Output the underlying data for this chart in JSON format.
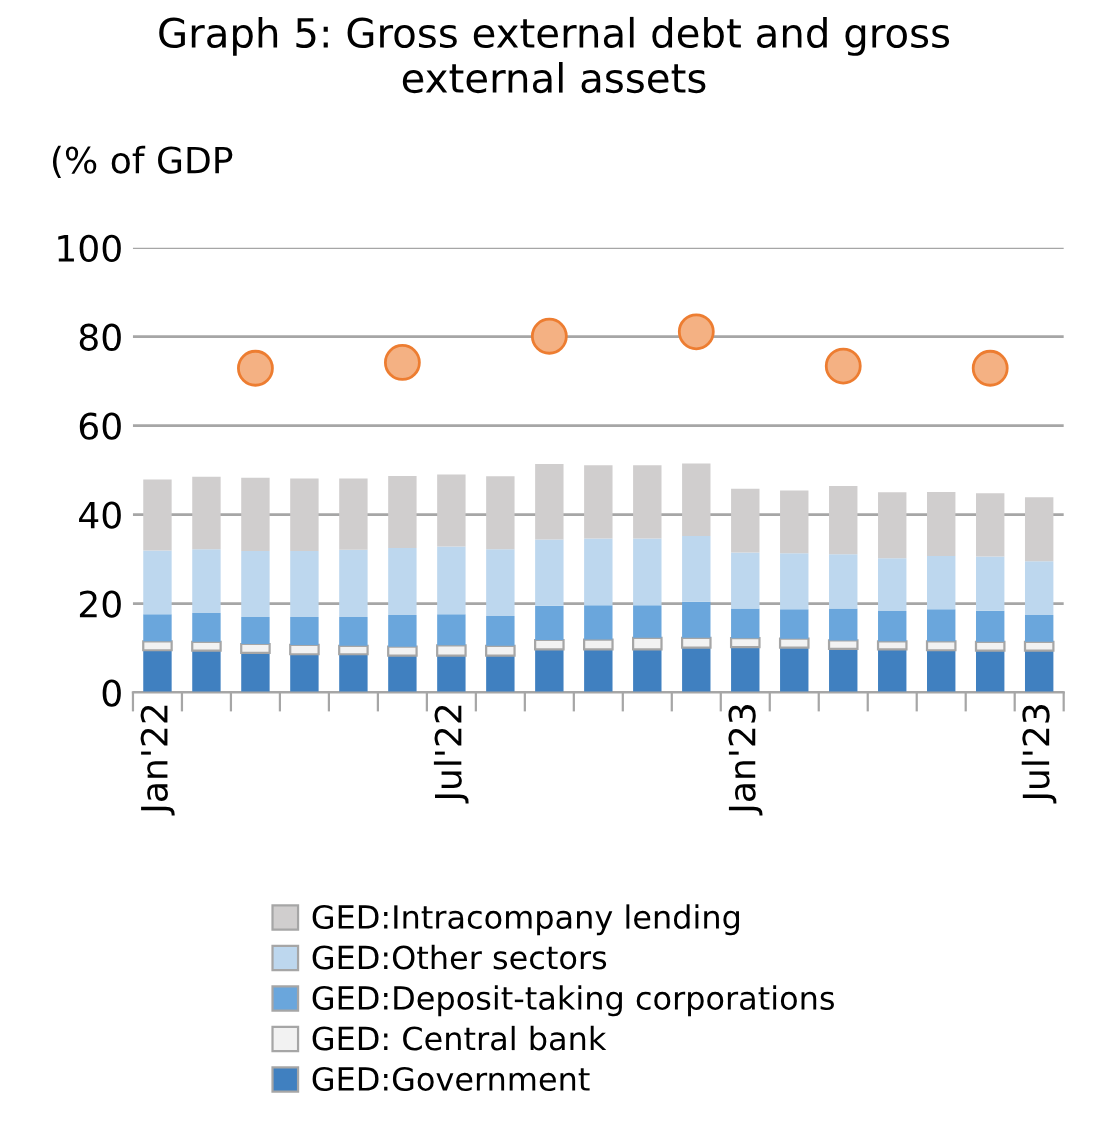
{
  "chart_data": {
    "type": "bar",
    "stacked": true,
    "title": "Graph 5: Gross external debt and gross\nexternal assets",
    "ylabel": "(% of GDP",
    "categories": [
      "Jan'22",
      null,
      null,
      null,
      null,
      null,
      "Jul'22",
      null,
      null,
      null,
      null,
      null,
      "Jan'23",
      null,
      null,
      null,
      null,
      null,
      "Jul'23"
    ],
    "series": [
      {
        "name": "GED:Government",
        "color": "#4080c0",
        "values": [
          9.5,
          9.4,
          8.9,
          8.6,
          8.6,
          8.3,
          8.3,
          8.3,
          9.7,
          9.7,
          9.7,
          10.1,
          10.2,
          10.1,
          9.8,
          9.7,
          9.5,
          9.4,
          9.4
        ]
      },
      {
        "name": "GED: Central bank",
        "color": "#f2f2f2",
        "values": [
          2.0,
          2.0,
          2.0,
          2.1,
          1.9,
          2.0,
          2.3,
          2.2,
          2.1,
          2.2,
          2.6,
          2.2,
          2.0,
          2.0,
          1.9,
          1.8,
          2.0,
          2.0,
          2.0
        ]
      },
      {
        "name": "GED:Deposit-taking corporations",
        "color": "#6aa6dc",
        "values": [
          6.1,
          6.5,
          6.1,
          6.3,
          6.5,
          7.1,
          7.0,
          6.7,
          7.7,
          7.7,
          7.3,
          8.1,
          6.7,
          6.6,
          7.2,
          6.8,
          7.2,
          7.0,
          6.0
        ]
      },
      {
        "name": "GED:Other sectors",
        "color": "#bdd7ee",
        "values": [
          14.3,
          14.3,
          14.8,
          14.8,
          15.1,
          15.1,
          15.2,
          15.0,
          14.9,
          15.0,
          15.0,
          14.8,
          12.6,
          12.6,
          12.2,
          11.9,
          12.0,
          12.2,
          12.1
        ]
      },
      {
        "name": "GED:Intracompany lending",
        "color": "#d0cece",
        "values": [
          16.0,
          16.3,
          16.5,
          16.3,
          16.0,
          16.2,
          16.2,
          16.4,
          17.0,
          16.5,
          16.5,
          16.3,
          14.3,
          14.1,
          15.3,
          14.8,
          14.4,
          14.2,
          14.4
        ]
      },
      {
        "type": "scatter",
        "color": "#f4b183",
        "marker": "circle",
        "values": [
          null,
          null,
          72.9,
          null,
          null,
          74.2,
          null,
          null,
          80.1,
          null,
          null,
          81.1,
          null,
          null,
          73.4,
          null,
          null,
          72.9,
          null
        ]
      }
    ],
    "ylim": [
      0,
      100
    ],
    "yticks": [
      0,
      20,
      40,
      60,
      80,
      100
    ],
    "grid": "y",
    "legend": "bottom"
  }
}
